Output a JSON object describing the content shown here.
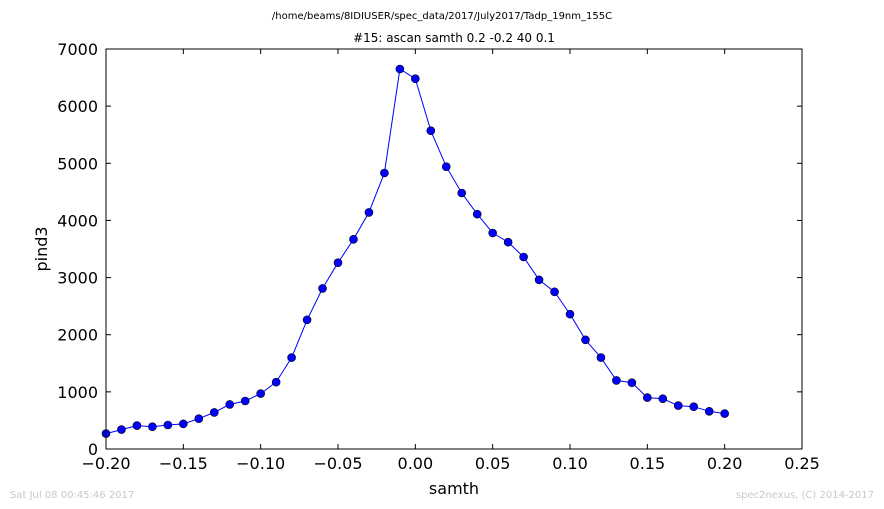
{
  "footer": {
    "timestamp": "Sat Jul 08 00:45:46 2017",
    "credit": "spec2nexus, (C) 2014-2017"
  },
  "chart_data": {
    "type": "line",
    "subtitle": "/home/beams/8IDIUSER/spec_data/2017/July2017/Tadp_19nm_155C",
    "title": "#15: ascan  samth 0.2 -0.2  40 0.1",
    "xlabel": "samth",
    "ylabel": "pind3",
    "xlim": [
      -0.2,
      0.25
    ],
    "ylim": [
      0,
      7000
    ],
    "xticks": [
      -0.2,
      -0.15,
      -0.1,
      -0.05,
      0.0,
      0.05,
      0.1,
      0.15,
      0.2,
      0.25
    ],
    "xtick_labels": [
      "−0.20",
      "−0.15",
      "−0.10",
      "−0.05",
      "0.00",
      "0.05",
      "0.10",
      "0.15",
      "0.20",
      "0.25"
    ],
    "yticks": [
      0,
      1000,
      2000,
      3000,
      4000,
      5000,
      6000,
      7000
    ],
    "ytick_labels": [
      "0",
      "1000",
      "2000",
      "3000",
      "4000",
      "5000",
      "6000",
      "7000"
    ],
    "grid": false,
    "line_color": "#0000ff",
    "marker": "circle",
    "marker_color": "#0000ff",
    "x": [
      -0.2,
      -0.19,
      -0.18,
      -0.17,
      -0.16,
      -0.15,
      -0.14,
      -0.13,
      -0.12,
      -0.11,
      -0.1,
      -0.09,
      -0.08,
      -0.07,
      -0.06,
      -0.05,
      -0.04,
      -0.03,
      -0.02,
      -0.01,
      0.0,
      0.01,
      0.02,
      0.03,
      0.04,
      0.05,
      0.06,
      0.07,
      0.08,
      0.09,
      0.1,
      0.11,
      0.12,
      0.13,
      0.14,
      0.15,
      0.16,
      0.17,
      0.18,
      0.19,
      0.2
    ],
    "y": [
      270,
      340,
      410,
      390,
      420,
      440,
      530,
      640,
      780,
      840,
      970,
      1170,
      1600,
      2260,
      2810,
      3260,
      3670,
      4140,
      4830,
      6650,
      6480,
      5570,
      4940,
      4480,
      4110,
      3780,
      3620,
      3360,
      2960,
      2750,
      2360,
      1910,
      1600,
      1200,
      1160,
      900,
      880,
      760,
      740,
      660,
      620
    ]
  }
}
